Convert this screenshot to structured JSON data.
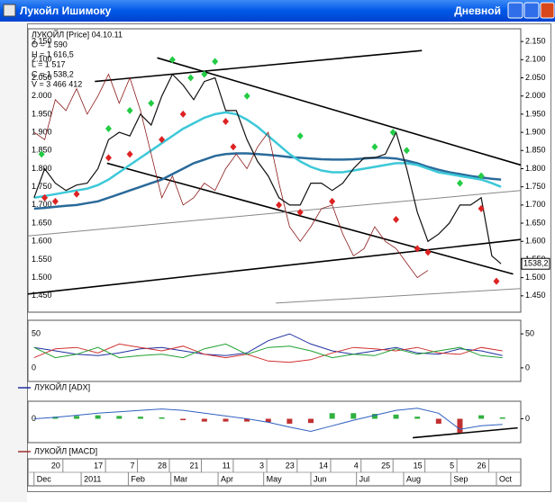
{
  "window": {
    "title": "Лукойл Ишимоку",
    "mode": "Дневной"
  },
  "time_axis": {
    "xlim": [
      -4,
      320
    ],
    "days": [
      {
        "value": 19,
        "label": "20"
      },
      {
        "value": 47,
        "label": "17"
      },
      {
        "value": 68,
        "label": "7"
      },
      {
        "value": 89,
        "label": "28"
      },
      {
        "value": 110,
        "label": "21"
      },
      {
        "value": 131,
        "label": "11"
      },
      {
        "value": 153,
        "label": "3"
      },
      {
        "value": 173,
        "label": "23"
      },
      {
        "value": 195,
        "label": "14"
      },
      {
        "value": 215,
        "label": "4"
      },
      {
        "value": 236,
        "label": "25"
      },
      {
        "value": 257,
        "label": "15"
      },
      {
        "value": 278,
        "label": "5"
      },
      {
        "value": 299,
        "label": "26"
      }
    ],
    "months": [
      {
        "value": 0,
        "label": "Dec"
      },
      {
        "value": 31,
        "label": "2011"
      },
      {
        "value": 62,
        "label": "Feb"
      },
      {
        "value": 90,
        "label": "Mar"
      },
      {
        "value": 121,
        "label": "Apr"
      },
      {
        "value": 151,
        "label": "May"
      },
      {
        "value": 182,
        "label": "Jun"
      },
      {
        "value": 212,
        "label": "Jul"
      },
      {
        "value": 243,
        "label": "Aug"
      },
      {
        "value": 274,
        "label": "Sep"
      },
      {
        "value": 304,
        "label": "Oct"
      }
    ]
  },
  "chart_data": [
    {
      "type": "line",
      "title": "ЛУКОЙЛ [Price] 04.10.11",
      "info": [
        "O = 1 590",
        "H = 1 616,5",
        "L = 1 517",
        "C = 1 538,2",
        "V = 3 466 412"
      ],
      "ylim": [
        1405,
        2185
      ],
      "yticks": [
        {
          "value": 1450,
          "label": "1.450"
        },
        {
          "value": 1500,
          "label": "1.500"
        },
        {
          "value": 1550,
          "label": "1.550"
        },
        {
          "value": 1600,
          "label": "1.600"
        },
        {
          "value": 1650,
          "label": "1.650"
        },
        {
          "value": 1700,
          "label": "1.700"
        },
        {
          "value": 1750,
          "label": "1.750"
        },
        {
          "value": 1800,
          "label": "1.800"
        },
        {
          "value": 1850,
          "label": "1.850"
        },
        {
          "value": 1900,
          "label": "1.900"
        },
        {
          "value": 1950,
          "label": "1.950"
        },
        {
          "value": 2000,
          "label": "2.000"
        },
        {
          "value": 2050,
          "label": "2.050"
        },
        {
          "value": 2100,
          "label": "2.100"
        },
        {
          "value": 2150,
          "label": "2.150"
        }
      ],
      "x": [
        0,
        7,
        14,
        21,
        28,
        35,
        42,
        49,
        56,
        63,
        70,
        77,
        84,
        91,
        98,
        105,
        112,
        119,
        126,
        133,
        140,
        147,
        154,
        161,
        168,
        175,
        182,
        189,
        196,
        203,
        210,
        217,
        224,
        231,
        238,
        245,
        252,
        259,
        266,
        273,
        280,
        287,
        294,
        301,
        307
      ],
      "series": [
        {
          "color": "#2a6a9a",
          "width": 2.5,
          "values": [
            1690,
            1692,
            1695,
            1698,
            1700,
            1705,
            1710,
            1720,
            1730,
            1740,
            1750,
            1760,
            1770,
            1785,
            1800,
            1815,
            1825,
            1835,
            1840,
            1842,
            1842,
            1840,
            1838,
            1835,
            1832,
            1830,
            1828,
            1826,
            1825,
            1825,
            1826,
            1828,
            1830,
            1830,
            1828,
            1822,
            1815,
            1805,
            1797,
            1790,
            1785,
            1780,
            1776,
            1772,
            1770
          ]
        },
        {
          "color": "#3cc8d8",
          "width": 2.5,
          "values": [
            1720,
            1725,
            1730,
            1735,
            1740,
            1745,
            1755,
            1770,
            1790,
            1810,
            1830,
            1850,
            1870,
            1890,
            1910,
            1925,
            1940,
            1950,
            1955,
            1950,
            1935,
            1915,
            1890,
            1865,
            1840,
            1820,
            1805,
            1795,
            1790,
            1790,
            1795,
            1800,
            1805,
            1810,
            1815,
            1815,
            1810,
            1800,
            1790,
            1785,
            1780,
            1775,
            1770,
            1760,
            1750
          ]
        },
        {
          "color": "#8b1a1a",
          "width": 0.8,
          "values": [
            1900,
            1880,
            1990,
            1960,
            2020,
            1950,
            2000,
            2060,
            1980,
            2050,
            1960,
            1840,
            1720,
            1780,
            1700,
            1720,
            1760,
            1740,
            1800,
            1840,
            1800,
            1860,
            1900,
            1760,
            1640,
            1600,
            1640,
            1690,
            1700,
            1620,
            1560,
            1580,
            1640,
            1600,
            1580,
            1540,
            1500,
            1520,
            null,
            null,
            null,
            null,
            null,
            null,
            null
          ]
        },
        {
          "color": "#111111",
          "width": 1.2,
          "values": [
            1720,
            1800,
            1760,
            1740,
            1755,
            1760,
            1800,
            1880,
            1900,
            1890,
            1950,
            1920,
            2000,
            2060,
            2030,
            1990,
            2040,
            2050,
            1960,
            1960,
            1880,
            1820,
            1780,
            1720,
            1700,
            1700,
            1760,
            1760,
            1740,
            1760,
            1800,
            1830,
            1830,
            1840,
            1900,
            1800,
            1680,
            1600,
            1620,
            1650,
            1700,
            1700,
            1720,
            1560,
            1538.2
          ]
        }
      ],
      "trendlines": [
        {
          "color": "#000000",
          "x": [
            40,
            255
          ],
          "y": [
            2040,
            2125
          ]
        },
        {
          "color": "#000000",
          "x": [
            81,
            320
          ],
          "y": [
            2105,
            1810
          ]
        },
        {
          "color": "#000000",
          "x": [
            48,
            315
          ],
          "y": [
            1815,
            1510
          ]
        },
        {
          "color": "#000000",
          "x": [
            -4,
            320
          ],
          "y": [
            1455,
            1605
          ]
        },
        {
          "color": "#888888",
          "x": [
            -4,
            320
          ],
          "y": [
            1615,
            1740
          ]
        },
        {
          "color": "#888888",
          "x": [
            159,
            320
          ],
          "y": [
            1430,
            1470
          ]
        }
      ],
      "markers": [
        {
          "color": "#22cc44",
          "x": [
            5,
            49,
            63,
            77,
            91,
            103,
            112,
            119,
            140,
            175,
            224,
            236,
            245,
            280,
            294
          ],
          "y": [
            1840,
            1910,
            1960,
            1980,
            2100,
            2050,
            2060,
            2095,
            2000,
            1890,
            1860,
            1900,
            1850,
            1760,
            1780
          ]
        },
        {
          "color": "#dd2222",
          "x": [
            7,
            14,
            28,
            49,
            63,
            84,
            98,
            126,
            131,
            161,
            175,
            196,
            238,
            252,
            259,
            294,
            304
          ],
          "y": [
            1720,
            1710,
            1730,
            1830,
            1840,
            1880,
            1950,
            1930,
            1860,
            1700,
            1680,
            1710,
            1660,
            1580,
            1570,
            1690,
            1490
          ]
        }
      ],
      "price_label": {
        "value": 1538.2,
        "label": "1538,2"
      }
    },
    {
      "type": "line",
      "title": "ЛУКОЙЛ [ADX]",
      "ylim": [
        -20,
        70
      ],
      "yticks": [
        0,
        50
      ],
      "x": [
        0,
        14,
        28,
        42,
        56,
        70,
        84,
        98,
        112,
        126,
        140,
        154,
        168,
        182,
        196,
        210,
        224,
        238,
        252,
        266,
        280,
        294,
        308
      ],
      "series": [
        {
          "color": "#2030a0",
          "width": 1,
          "values": [
            30,
            25,
            20,
            18,
            22,
            28,
            30,
            25,
            20,
            18,
            22,
            40,
            50,
            35,
            25,
            20,
            25,
            30,
            22,
            20,
            28,
            25,
            18
          ]
        },
        {
          "color": "#d03030",
          "width": 1,
          "values": [
            15,
            28,
            30,
            22,
            35,
            30,
            25,
            32,
            20,
            15,
            20,
            10,
            8,
            12,
            22,
            30,
            28,
            25,
            30,
            22,
            20,
            30,
            25
          ]
        },
        {
          "color": "#20a030",
          "width": 1,
          "values": [
            30,
            15,
            20,
            30,
            15,
            18,
            20,
            15,
            28,
            35,
            20,
            30,
            32,
            25,
            15,
            20,
            18,
            28,
            20,
            25,
            30,
            18,
            15
          ]
        }
      ]
    },
    {
      "type": "line",
      "title": "ЛУКОЙЛ [MACD]",
      "ylim": [
        -34,
        25
      ],
      "yticks": [
        0
      ],
      "x": [
        0,
        14,
        28,
        42,
        56,
        70,
        84,
        98,
        112,
        126,
        140,
        154,
        168,
        182,
        196,
        210,
        224,
        238,
        252,
        266,
        280,
        294,
        308
      ],
      "series": [
        {
          "type": "bar",
          "color": "#30b040",
          "color_down": "#c03030",
          "values": [
            0,
            3,
            4,
            5,
            4,
            3,
            2,
            -2,
            -4,
            -4,
            -4,
            -5,
            -7,
            -6,
            8,
            8,
            7,
            6,
            3,
            -7,
            -20,
            5,
            2
          ]
        },
        {
          "color": "#3060c0",
          "width": 1,
          "values": [
            0,
            2,
            5,
            8,
            10,
            12,
            14,
            12,
            8,
            4,
            0,
            -5,
            -12,
            -18,
            -10,
            -2,
            5,
            12,
            15,
            8,
            -15,
            -10,
            -8
          ]
        }
      ],
      "trendlines": [
        {
          "color": "#000000",
          "x": [
            249,
            318
          ],
          "y": [
            -27,
            -13
          ]
        }
      ]
    }
  ]
}
